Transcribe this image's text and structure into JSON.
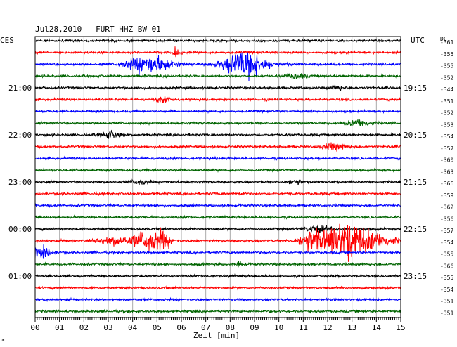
{
  "header": {
    "title": "Jul28,2010   FURT HHZ BW 01",
    "left_zone": "CES",
    "right_zone": "UTC",
    "dc_label": "DC"
  },
  "chart_data": {
    "type": "line",
    "xlabel": "Zeit [min]",
    "xlim": [
      0,
      15
    ],
    "x_ticks": [
      "00",
      "01",
      "02",
      "03",
      "04",
      "05",
      "06",
      "07",
      "08",
      "09",
      "10",
      "11",
      "12",
      "13",
      "14",
      "15"
    ],
    "left_time_labels": [
      {
        "trace": 4,
        "text": "21:00"
      },
      {
        "trace": 8,
        "text": "22:00"
      },
      {
        "trace": 12,
        "text": "23:00"
      },
      {
        "trace": 16,
        "text": "00:00"
      },
      {
        "trace": 20,
        "text": "01:00"
      }
    ],
    "right_time_labels": [
      {
        "trace": 4,
        "text": "19:15"
      },
      {
        "trace": 8,
        "text": "20:15"
      },
      {
        "trace": 12,
        "text": "21:15"
      },
      {
        "trace": 16,
        "text": "22:15"
      },
      {
        "trace": 20,
        "text": "23:15"
      }
    ],
    "traces": [
      {
        "color": "#000000",
        "dc": "-361",
        "events": []
      },
      {
        "color": "#ff0000",
        "dc": "-355",
        "events": [
          {
            "t": 5.8,
            "amp": 5,
            "w": 0.15
          }
        ]
      },
      {
        "color": "#0000ff",
        "dc": "-355",
        "events": [
          {
            "t": 4.7,
            "amp": 11,
            "w": 0.9
          },
          {
            "t": 8.6,
            "amp": 15,
            "w": 0.9
          }
        ]
      },
      {
        "color": "#006400",
        "dc": "-352",
        "events": [
          {
            "t": 10.7,
            "amp": 3,
            "w": 0.4
          }
        ]
      },
      {
        "color": "#000000",
        "dc": "-344",
        "events": [
          {
            "t": 12.4,
            "amp": 3,
            "w": 0.3
          }
        ]
      },
      {
        "color": "#ff0000",
        "dc": "-351",
        "events": [
          {
            "t": 5.3,
            "amp": 3,
            "w": 0.3
          }
        ]
      },
      {
        "color": "#0000ff",
        "dc": "-352",
        "events": []
      },
      {
        "color": "#006400",
        "dc": "-353",
        "events": [
          {
            "t": 13.3,
            "amp": 4,
            "w": 0.5
          }
        ]
      },
      {
        "color": "#000000",
        "dc": "-354",
        "events": [
          {
            "t": 3.1,
            "amp": 4,
            "w": 0.4
          }
        ]
      },
      {
        "color": "#ff0000",
        "dc": "-357",
        "events": [
          {
            "t": 12.3,
            "amp": 4,
            "w": 0.5
          }
        ]
      },
      {
        "color": "#0000ff",
        "dc": "-360",
        "events": []
      },
      {
        "color": "#006400",
        "dc": "-363",
        "events": []
      },
      {
        "color": "#000000",
        "dc": "-366",
        "events": [
          {
            "t": 4.3,
            "amp": 3,
            "w": 0.4
          },
          {
            "t": 10.7,
            "amp": 3,
            "w": 0.3
          }
        ]
      },
      {
        "color": "#ff0000",
        "dc": "-359",
        "events": [
          {
            "t": 8.5,
            "amp": 2,
            "w": 0.1
          }
        ]
      },
      {
        "color": "#0000ff",
        "dc": "-362",
        "events": []
      },
      {
        "color": "#006400",
        "dc": "-356",
        "events": []
      },
      {
        "color": "#000000",
        "dc": "-357",
        "events": [
          {
            "t": 11.6,
            "amp": 4,
            "w": 0.5
          }
        ]
      },
      {
        "color": "#ff0000",
        "dc": "-354",
        "events": [
          {
            "t": 3.2,
            "amp": 5,
            "w": 0.7
          },
          {
            "t": 4.5,
            "amp": 11,
            "w": 0.5
          },
          {
            "t": 5.2,
            "amp": 10,
            "w": 0.4
          },
          {
            "t": 11.3,
            "amp": 10,
            "w": 0.4
          },
          {
            "t": 12.8,
            "amp": 22,
            "w": 1.1
          },
          {
            "t": 14.3,
            "amp": 4,
            "w": 0.6
          }
        ]
      },
      {
        "color": "#0000ff",
        "dc": "-355",
        "events": [
          {
            "t": 0.2,
            "amp": 6,
            "w": 0.4
          }
        ]
      },
      {
        "color": "#006400",
        "dc": "-366",
        "events": [
          {
            "t": 8.4,
            "amp": 4,
            "w": 0.1
          }
        ]
      },
      {
        "color": "#000000",
        "dc": "-355",
        "events": []
      },
      {
        "color": "#ff0000",
        "dc": "-354",
        "events": []
      },
      {
        "color": "#0000ff",
        "dc": "-351",
        "events": []
      },
      {
        "color": "#006400",
        "dc": "-351",
        "events": []
      }
    ]
  }
}
